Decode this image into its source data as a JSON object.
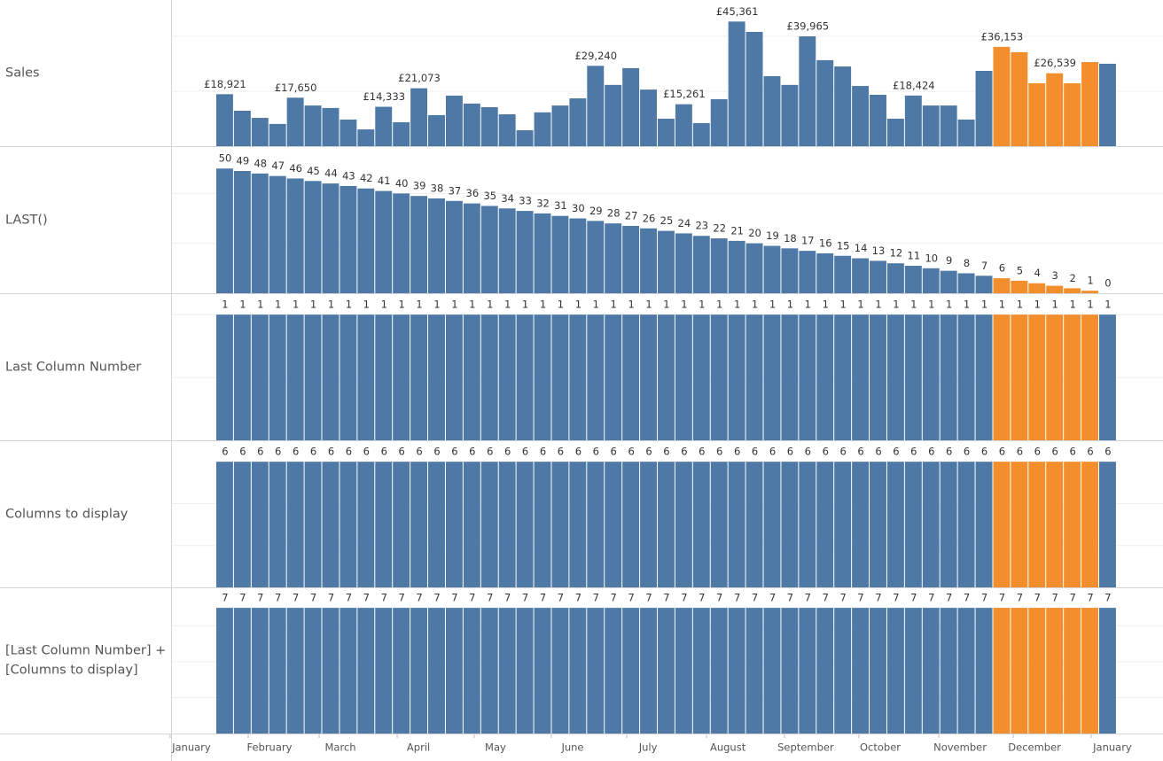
{
  "bar_colors": [
    "#4e79a7",
    "#4e79a7",
    "#4e79a7",
    "#4e79a7",
    "#4e79a7",
    "#4e79a7",
    "#4e79a7",
    "#4e79a7",
    "#4e79a7",
    "#4e79a7",
    "#4e79a7",
    "#4e79a7",
    "#4e79a7",
    "#4e79a7",
    "#4e79a7",
    "#4e79a7",
    "#4e79a7",
    "#4e79a7",
    "#4e79a7",
    "#4e79a7",
    "#4e79a7",
    "#4e79a7",
    "#4e79a7",
    "#4e79a7",
    "#4e79a7",
    "#4e79a7",
    "#4e79a7",
    "#4e79a7",
    "#4e79a7",
    "#4e79a7",
    "#4e79a7",
    "#4e79a7",
    "#4e79a7",
    "#4e79a7",
    "#4e79a7",
    "#4e79a7",
    "#4e79a7",
    "#4e79a7",
    "#4e79a7",
    "#4e79a7",
    "#4e79a7",
    "#4e79a7",
    "#4e79a7",
    "#4e79a7",
    "#f28e2b",
    "#f28e2b",
    "#f28e2b",
    "#f28e2b",
    "#f28e2b",
    "#f28e2b",
    "#4e79a7"
  ],
  "chart_data": [
    {
      "type": "bar",
      "ylabel": [
        "Sales"
      ],
      "ylim": [
        0,
        53200
      ],
      "gridlines": [
        20000,
        40000
      ],
      "values": [
        18921,
        12900,
        10300,
        8100,
        17650,
        14800,
        13900,
        9700,
        6100,
        14333,
        8700,
        21073,
        11300,
        18400,
        15500,
        14200,
        11600,
        5800,
        12300,
        14800,
        17400,
        29240,
        22300,
        28400,
        20600,
        10000,
        15261,
        8400,
        17100,
        45361,
        41600,
        25500,
        22300,
        39965,
        31300,
        29000,
        21900,
        18700,
        10000,
        18424,
        14800,
        14800,
        9700,
        27400,
        36153,
        34200,
        22900,
        26539,
        22900,
        30600,
        30000
      ],
      "value_labels": [
        "£18,921",
        null,
        null,
        null,
        "£17,650",
        null,
        null,
        null,
        null,
        "£14,333",
        null,
        "£21,073",
        null,
        null,
        null,
        null,
        null,
        null,
        null,
        null,
        null,
        "£29,240",
        null,
        null,
        null,
        null,
        "£15,261",
        null,
        null,
        "£45,361",
        null,
        null,
        null,
        "£39,965",
        null,
        null,
        null,
        null,
        null,
        "£18,424",
        null,
        null,
        null,
        null,
        "£36,153",
        null,
        null,
        "£26,539",
        null,
        null,
        null
      ]
    },
    {
      "type": "bar",
      "ylabel": [
        "LAST()"
      ],
      "ylim": [
        0,
        58.6
      ],
      "gridlines": [
        20,
        40
      ],
      "values": [
        50,
        49,
        48,
        47,
        46,
        45,
        44,
        43,
        42,
        41,
        40,
        39,
        38,
        37,
        36,
        35,
        34,
        33,
        32,
        31,
        30,
        29,
        28,
        27,
        26,
        25,
        24,
        23,
        22,
        21,
        20,
        19,
        18,
        17,
        16,
        15,
        14,
        13,
        12,
        11,
        10,
        9,
        8,
        7,
        6,
        5,
        4,
        3,
        2,
        1,
        0
      ]
    },
    {
      "type": "bar",
      "ylabel": [
        "Last Column Number"
      ],
      "ylim": [
        0,
        1.163
      ],
      "gridlines": [
        0.5,
        1
      ],
      "values": [
        1,
        1,
        1,
        1,
        1,
        1,
        1,
        1,
        1,
        1,
        1,
        1,
        1,
        1,
        1,
        1,
        1,
        1,
        1,
        1,
        1,
        1,
        1,
        1,
        1,
        1,
        1,
        1,
        1,
        1,
        1,
        1,
        1,
        1,
        1,
        1,
        1,
        1,
        1,
        1,
        1,
        1,
        1,
        1,
        1,
        1,
        1,
        1,
        1,
        1,
        1
      ]
    },
    {
      "type": "bar",
      "ylabel": [
        "Columns to display"
      ],
      "ylim": [
        0,
        6.98
      ],
      "gridlines": [
        2,
        4
      ],
      "values": [
        6,
        6,
        6,
        6,
        6,
        6,
        6,
        6,
        6,
        6,
        6,
        6,
        6,
        6,
        6,
        6,
        6,
        6,
        6,
        6,
        6,
        6,
        6,
        6,
        6,
        6,
        6,
        6,
        6,
        6,
        6,
        6,
        6,
        6,
        6,
        6,
        6,
        6,
        6,
        6,
        6,
        6,
        6,
        6,
        6,
        6,
        6,
        6,
        6,
        6,
        6
      ]
    },
    {
      "type": "bar",
      "ylabel": [
        "[Last Column Number] +",
        "[Columns to display]"
      ],
      "ylim": [
        0,
        8.14
      ],
      "gridlines": [
        2,
        4,
        6
      ],
      "values": [
        7,
        7,
        7,
        7,
        7,
        7,
        7,
        7,
        7,
        7,
        7,
        7,
        7,
        7,
        7,
        7,
        7,
        7,
        7,
        7,
        7,
        7,
        7,
        7,
        7,
        7,
        7,
        7,
        7,
        7,
        7,
        7,
        7,
        7,
        7,
        7,
        7,
        7,
        7,
        7,
        7,
        7,
        7,
        7,
        7,
        7,
        7,
        7,
        7,
        7,
        7
      ],
      "xlim": [
        -2.56,
        53.6
      ],
      "xticks": [
        {
          "value": -1.41,
          "label": "January"
        },
        {
          "value": 3.01,
          "label": "February"
        },
        {
          "value": 7.03,
          "label": "March"
        },
        {
          "value": 11.45,
          "label": "April"
        },
        {
          "value": 15.81,
          "label": "May"
        },
        {
          "value": 20.18,
          "label": "June"
        },
        {
          "value": 24.45,
          "label": "July"
        },
        {
          "value": 28.97,
          "label": "August"
        },
        {
          "value": 33.38,
          "label": "September"
        },
        {
          "value": 37.6,
          "label": "October"
        },
        {
          "value": 42.12,
          "label": "November"
        },
        {
          "value": 46.34,
          "label": "December"
        },
        {
          "value": 50.75,
          "label": "January"
        }
      ]
    }
  ]
}
